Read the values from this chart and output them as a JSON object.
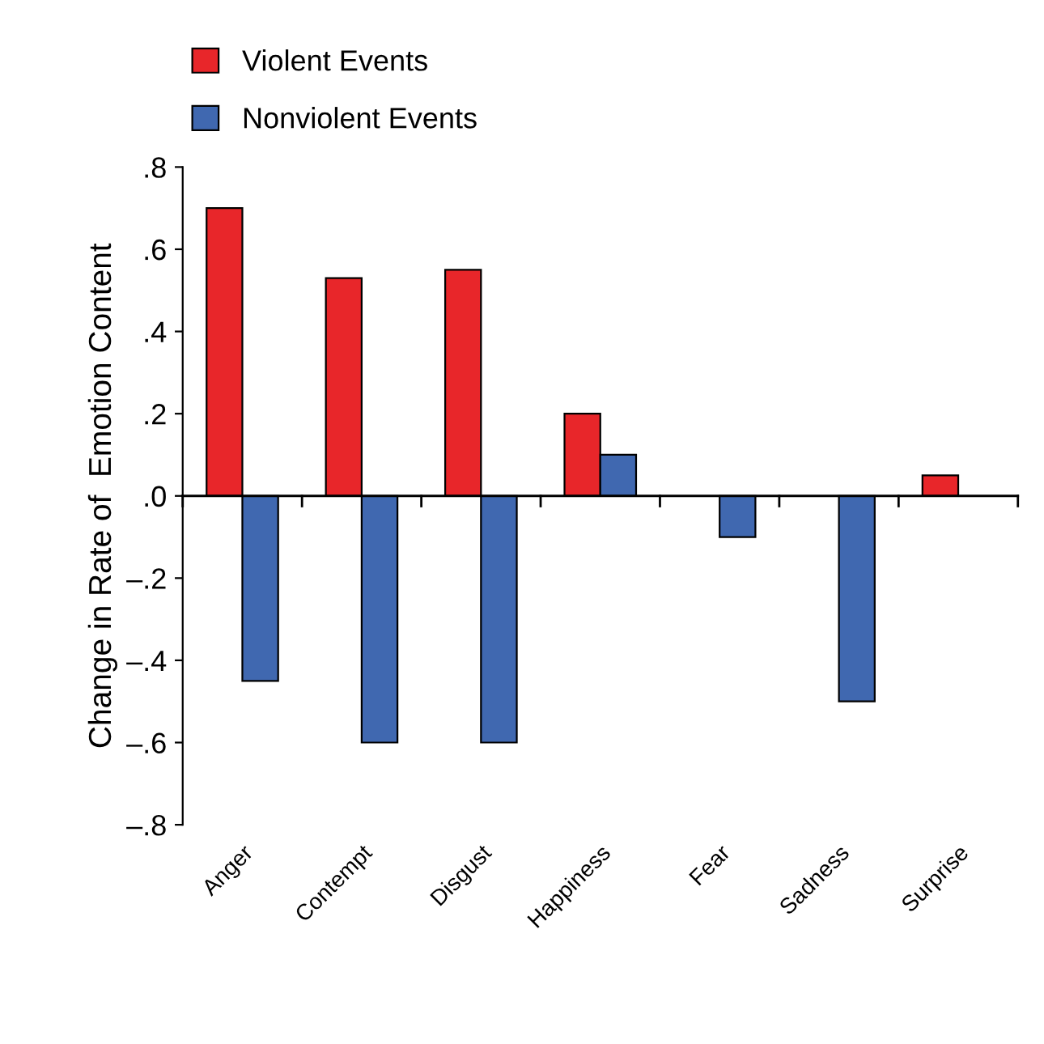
{
  "chart_data": {
    "type": "bar",
    "ylabel": "Change in Rate of  Emotion Content",
    "categories": [
      "Anger",
      "Contempt",
      "Disgust",
      "Happiness",
      "Fear",
      "Sadness",
      "Surprise"
    ],
    "series": [
      {
        "name": "Violent Events",
        "color": "#e8262a",
        "values": [
          0.7,
          0.53,
          0.55,
          0.2,
          null,
          null,
          0.05
        ]
      },
      {
        "name": "Nonviolent Events",
        "color": "#4068b0",
        "values": [
          -0.45,
          -0.6,
          -0.6,
          0.1,
          -0.1,
          -0.5,
          null
        ]
      }
    ],
    "ylim": [
      -0.8,
      0.8
    ],
    "yticks": [
      {
        "value": -0.8,
        "label": "–.8"
      },
      {
        "value": -0.6,
        "label": "–.6"
      },
      {
        "value": -0.4,
        "label": "–.4"
      },
      {
        "value": -0.2,
        "label": "–.2"
      },
      {
        "value": 0,
        "label": ".0"
      },
      {
        "value": 0.2,
        "label": ".2"
      },
      {
        "value": 0.4,
        "label": ".4"
      },
      {
        "value": 0.6,
        "label": ".6"
      },
      {
        "value": 0.8,
        "label": ".8"
      }
    ],
    "legend": "top left"
  }
}
